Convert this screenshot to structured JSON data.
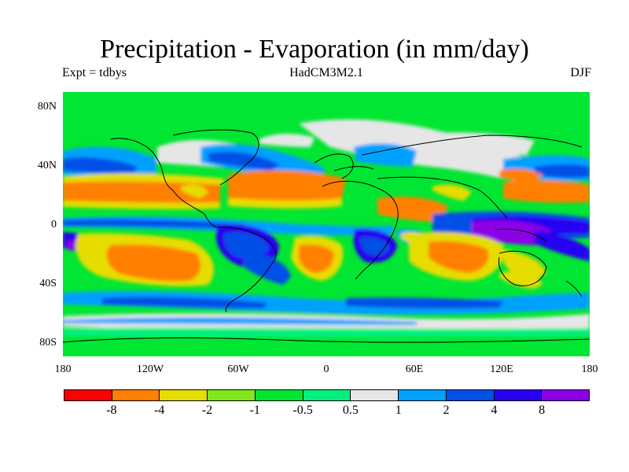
{
  "title": "Precipitation - Evaporation (in mm/day)",
  "experiment": "Expt = tdbys",
  "model": "HadCM3M2.1",
  "season": "DJF",
  "latitude_ticks": [
    "80N",
    "40N",
    "0",
    "40S",
    "80S"
  ],
  "longitude_ticks": [
    "180",
    "120W",
    "60W",
    "0",
    "60E",
    "120E",
    "180"
  ],
  "colorbar": {
    "colors": [
      "#ff0000",
      "#ff8000",
      "#e6dc00",
      "#80e61e",
      "#00e632",
      "#00f080",
      "#e6e6e6",
      "#00a0ff",
      "#0050e6",
      "#2800f0",
      "#8c00e6"
    ],
    "labels": [
      "-8",
      "-4",
      "-2",
      "-1",
      "-0.5",
      "0.5",
      "1",
      "2",
      "4",
      "8"
    ]
  },
  "colors": {
    "ocean_base": "#00e632",
    "land": "#00e632",
    "coastline": "#000000"
  }
}
